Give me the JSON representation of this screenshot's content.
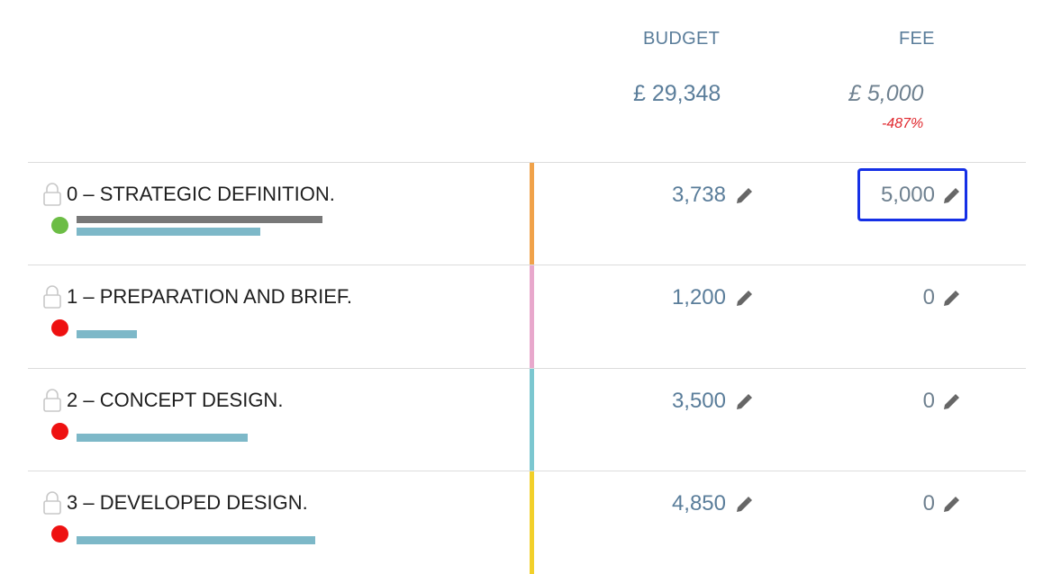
{
  "header": {
    "budget_label": "BUDGET",
    "fee_label": "FEE",
    "budget_total": "£ 29,348",
    "fee_total": "£ 5,000",
    "fee_percent": "-487%"
  },
  "rows": [
    {
      "title": "0 – STRATEGIC DEFINITION.",
      "budget": "3,738",
      "fee": "5,000",
      "status": "green",
      "stripe_color": "#f0a24a",
      "actual_bar_fraction": 0.98,
      "budget_bar_fraction": 0.73,
      "fee_selected": true
    },
    {
      "title": "1 – PREPARATION AND BRIEF.",
      "budget": "1,200",
      "fee": "0",
      "status": "red",
      "stripe_color": "#e8a8cc",
      "actual_bar_fraction": 0,
      "budget_bar_fraction": 0.24
    },
    {
      "title": "2 – CONCEPT DESIGN.",
      "budget": "3,500",
      "fee": "0",
      "status": "red",
      "stripe_color": "#7cc7d0",
      "actual_bar_fraction": 0,
      "budget_bar_fraction": 0.68
    },
    {
      "title": "3 – DEVELOPED DESIGN.",
      "budget": "4,850",
      "fee": "0",
      "status": "red",
      "stripe_color": "#f2d02a",
      "actual_bar_fraction": 0,
      "budget_bar_fraction": 0.95
    }
  ],
  "icons": {
    "lock": "lock-icon",
    "edit": "pencil-icon"
  },
  "colors": {
    "status_green": "#6cbd45",
    "status_red": "#ee1111",
    "selection_border": "#1530e6"
  }
}
